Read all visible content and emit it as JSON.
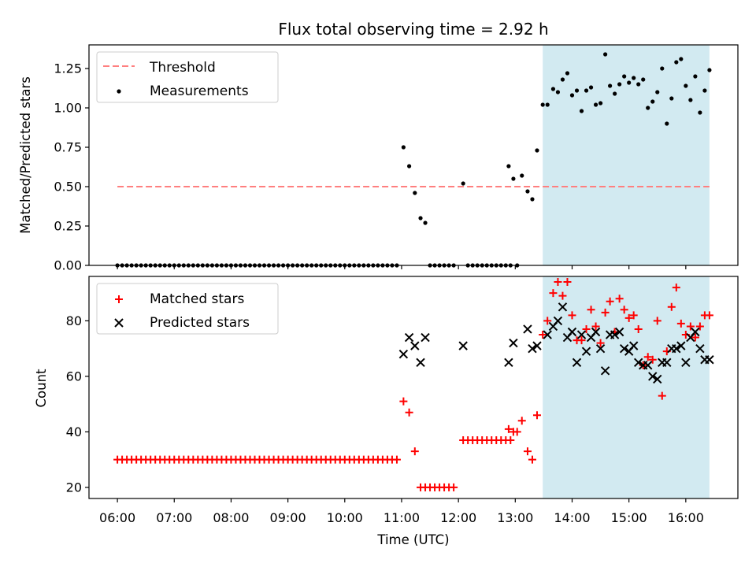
{
  "chart_data": [
    {
      "type": "scatter",
      "title": "Flux total observing time = 2.92 h",
      "xlabel": "",
      "ylabel": "Matched/Predicted stars",
      "xlim": [
        "05:30",
        "16:55"
      ],
      "ylim": [
        0,
        1.4
      ],
      "yticks": [
        "0.00",
        "0.25",
        "0.50",
        "0.75",
        "1.00",
        "1.25"
      ],
      "shaded_span": [
        "13:29",
        "16:25"
      ],
      "shade_color": "#add8e6",
      "legend": {
        "placement": "top-left",
        "entries": [
          "Threshold",
          "Measurements"
        ]
      },
      "series": [
        {
          "name": "Threshold",
          "style": "dashed-line",
          "color": "#ff7f7f",
          "x": [
            "06:00",
            "16:25"
          ],
          "y": [
            0.5,
            0.5
          ]
        },
        {
          "name": "Measurements",
          "style": "dot",
          "color": "#000000",
          "x": [
            "06:00",
            "06:05",
            "06:10",
            "06:15",
            "06:20",
            "06:25",
            "06:30",
            "06:35",
            "06:40",
            "06:45",
            "06:50",
            "06:55",
            "07:00",
            "07:05",
            "07:10",
            "07:15",
            "07:20",
            "07:25",
            "07:30",
            "07:35",
            "07:40",
            "07:45",
            "07:50",
            "07:55",
            "08:00",
            "08:05",
            "08:10",
            "08:15",
            "08:20",
            "08:25",
            "08:30",
            "08:35",
            "08:40",
            "08:45",
            "08:50",
            "08:55",
            "09:00",
            "09:05",
            "09:10",
            "09:15",
            "09:20",
            "09:25",
            "09:30",
            "09:35",
            "09:40",
            "09:45",
            "09:50",
            "09:55",
            "10:00",
            "10:05",
            "10:10",
            "10:15",
            "10:20",
            "10:25",
            "10:30",
            "10:35",
            "10:40",
            "10:45",
            "10:50",
            "10:55",
            "11:02",
            "11:08",
            "11:14",
            "11:20",
            "11:25",
            "11:30",
            "11:35",
            "11:40",
            "11:45",
            "11:50",
            "11:55",
            "12:05",
            "12:10",
            "12:15",
            "12:20",
            "12:25",
            "12:30",
            "12:35",
            "12:40",
            "12:45",
            "12:50",
            "12:55",
            "12:53",
            "12:58",
            "13:02",
            "13:07",
            "13:13",
            "13:18",
            "13:23",
            "13:29",
            "13:34",
            "13:40",
            "13:45",
            "13:50",
            "13:55",
            "14:00",
            "14:05",
            "14:10",
            "14:15",
            "14:20",
            "14:25",
            "14:30",
            "14:35",
            "14:40",
            "14:45",
            "14:50",
            "14:55",
            "15:00",
            "15:05",
            "15:10",
            "15:15",
            "15:20",
            "15:25",
            "15:30",
            "15:35",
            "15:40",
            "15:45",
            "15:50",
            "15:55",
            "16:00",
            "16:05",
            "16:10",
            "16:15",
            "16:20",
            "16:25"
          ],
          "y": [
            0,
            0,
            0,
            0,
            0,
            0,
            0,
            0,
            0,
            0,
            0,
            0,
            0,
            0,
            0,
            0,
            0,
            0,
            0,
            0,
            0,
            0,
            0,
            0,
            0,
            0,
            0,
            0,
            0,
            0,
            0,
            0,
            0,
            0,
            0,
            0,
            0,
            0,
            0,
            0,
            0,
            0,
            0,
            0,
            0,
            0,
            0,
            0,
            0,
            0,
            0,
            0,
            0,
            0,
            0,
            0,
            0,
            0,
            0,
            0,
            0.75,
            0.63,
            0.46,
            0.3,
            0.27,
            0,
            0,
            0,
            0,
            0,
            0,
            0.52,
            0,
            0,
            0,
            0,
            0,
            0,
            0,
            0,
            0,
            0,
            0.63,
            0.55,
            0,
            0.57,
            0.47,
            0.42,
            0.73,
            1.02,
            1.02,
            1.12,
            1.1,
            1.18,
            1.22,
            1.08,
            1.11,
            0.98,
            1.11,
            1.13,
            1.02,
            1.03,
            1.34,
            1.14,
            1.09,
            1.15,
            1.2,
            1.16,
            1.19,
            1.15,
            1.18,
            1.0,
            1.04,
            1.1,
            1.25,
            0.9,
            1.06,
            1.29,
            1.31,
            1.14,
            1.05,
            1.2,
            0.97,
            1.11,
            1.24
          ]
        }
      ]
    },
    {
      "type": "scatter",
      "title": "",
      "xlabel": "Time (UTC)",
      "ylabel": "Count",
      "xlim": [
        "05:30",
        "16:55"
      ],
      "ylim": [
        16,
        96
      ],
      "xticks": [
        "06:00",
        "07:00",
        "08:00",
        "09:00",
        "10:00",
        "11:00",
        "12:00",
        "13:00",
        "14:00",
        "15:00",
        "16:00"
      ],
      "yticks": [
        "20",
        "40",
        "60",
        "80"
      ],
      "shaded_span": [
        "13:29",
        "16:25"
      ],
      "shade_color": "#add8e6",
      "legend": {
        "placement": "top-left",
        "entries": [
          "Matched stars",
          "Predicted stars"
        ]
      },
      "series": [
        {
          "name": "Matched stars",
          "marker": "plus",
          "color": "#ff0000",
          "x": [
            "06:00",
            "06:05",
            "06:10",
            "06:15",
            "06:20",
            "06:25",
            "06:30",
            "06:35",
            "06:40",
            "06:45",
            "06:50",
            "06:55",
            "07:00",
            "07:05",
            "07:10",
            "07:15",
            "07:20",
            "07:25",
            "07:30",
            "07:35",
            "07:40",
            "07:45",
            "07:50",
            "07:55",
            "08:00",
            "08:05",
            "08:10",
            "08:15",
            "08:20",
            "08:25",
            "08:30",
            "08:35",
            "08:40",
            "08:45",
            "08:50",
            "08:55",
            "09:00",
            "09:05",
            "09:10",
            "09:15",
            "09:20",
            "09:25",
            "09:30",
            "09:35",
            "09:40",
            "09:45",
            "09:50",
            "09:55",
            "10:00",
            "10:05",
            "10:10",
            "10:15",
            "10:20",
            "10:25",
            "10:30",
            "10:35",
            "10:40",
            "10:45",
            "10:50",
            "10:55",
            "11:02",
            "11:08",
            "11:14",
            "11:20",
            "11:25",
            "11:30",
            "11:35",
            "11:40",
            "11:45",
            "11:50",
            "11:55",
            "12:05",
            "12:10",
            "12:15",
            "12:20",
            "12:25",
            "12:30",
            "12:35",
            "12:40",
            "12:45",
            "12:50",
            "12:55",
            "12:53",
            "12:58",
            "13:02",
            "13:07",
            "13:13",
            "13:18",
            "13:23",
            "13:29",
            "13:34",
            "13:40",
            "13:45",
            "13:50",
            "13:55",
            "14:00",
            "14:05",
            "14:10",
            "14:15",
            "14:20",
            "14:25",
            "14:30",
            "14:35",
            "14:40",
            "14:45",
            "14:50",
            "14:55",
            "15:00",
            "15:05",
            "15:10",
            "15:15",
            "15:20",
            "15:25",
            "15:30",
            "15:35",
            "15:40",
            "15:45",
            "15:50",
            "15:55",
            "16:00",
            "16:05",
            "16:10",
            "16:15",
            "16:20",
            "16:25"
          ],
          "y": [
            30,
            30,
            30,
            30,
            30,
            30,
            30,
            30,
            30,
            30,
            30,
            30,
            30,
            30,
            30,
            30,
            30,
            30,
            30,
            30,
            30,
            30,
            30,
            30,
            30,
            30,
            30,
            30,
            30,
            30,
            30,
            30,
            30,
            30,
            30,
            30,
            30,
            30,
            30,
            30,
            30,
            30,
            30,
            30,
            30,
            30,
            30,
            30,
            30,
            30,
            30,
            30,
            30,
            30,
            30,
            30,
            30,
            30,
            30,
            30,
            51,
            47,
            33,
            20,
            20,
            20,
            20,
            20,
            20,
            20,
            20,
            37,
            37,
            37,
            37,
            37,
            37,
            37,
            37,
            37,
            37,
            37,
            41,
            40,
            40,
            44,
            33,
            30,
            46,
            75,
            80,
            90,
            94,
            89,
            94,
            82,
            73,
            73,
            77,
            84,
            78,
            72,
            83,
            87,
            76,
            88,
            84,
            81,
            82,
            77,
            64,
            67,
            66,
            80,
            53,
            69,
            85,
            92,
            79,
            75,
            78,
            74,
            78,
            82,
            82
          ]
        },
        {
          "name": "Predicted stars",
          "marker": "cross",
          "color": "#000000",
          "x": [
            "11:02",
            "11:08",
            "11:14",
            "11:20",
            "11:25",
            "12:05",
            "12:53",
            "12:58",
            "13:13",
            "13:18",
            "13:23",
            "13:34",
            "13:40",
            "13:45",
            "13:50",
            "13:55",
            "14:00",
            "14:05",
            "14:10",
            "14:15",
            "14:20",
            "14:25",
            "14:30",
            "14:35",
            "14:40",
            "14:45",
            "14:50",
            "14:55",
            "15:00",
            "15:05",
            "15:10",
            "15:15",
            "15:20",
            "15:25",
            "15:30",
            "15:35",
            "15:40",
            "15:45",
            "15:50",
            "15:55",
            "16:00",
            "16:05",
            "16:10",
            "16:15",
            "16:20",
            "16:25"
          ],
          "y": [
            68,
            74,
            71,
            65,
            74,
            71,
            65,
            72,
            77,
            70,
            71,
            75,
            78,
            80,
            85,
            74,
            76,
            65,
            75,
            69,
            74,
            76,
            70,
            62,
            75,
            75,
            76,
            70,
            69,
            71,
            65,
            64,
            64,
            60,
            59,
            65,
            65,
            70,
            70,
            71,
            65,
            74,
            76,
            70,
            66,
            66
          ]
        }
      ]
    }
  ]
}
